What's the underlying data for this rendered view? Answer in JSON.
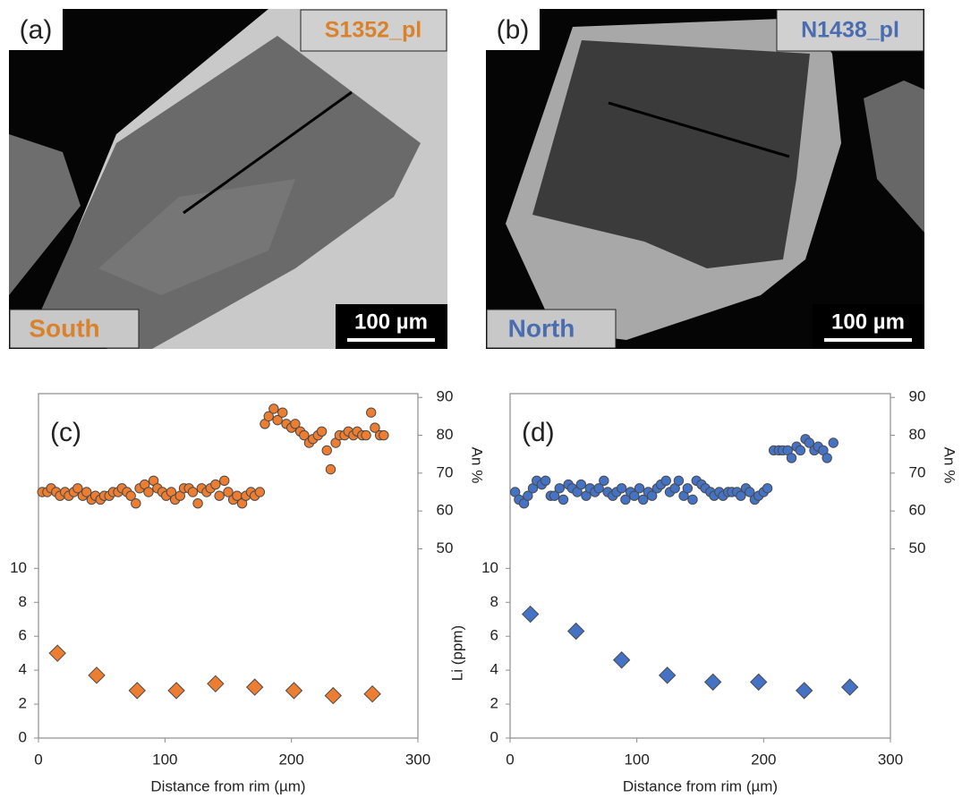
{
  "images": [
    {
      "label": "(a)",
      "sample": "S1352_pl",
      "region": "South",
      "scale": "100 µm",
      "color": "#d9822b"
    },
    {
      "label": "(b)",
      "sample": "N1438_pl",
      "region": "North",
      "scale": "100 µm",
      "color": "#4a6db0"
    }
  ],
  "chart_data": [
    {
      "type": "scatter",
      "label": "(c)",
      "xlabel": "Distance from rim (µm)",
      "y2label": "An %",
      "xlim": [
        0,
        300
      ],
      "xticks": [
        0,
        100,
        200,
        300
      ],
      "ylim": [
        0,
        20.3
      ],
      "yticks": [
        0,
        2,
        4,
        6,
        8,
        10
      ],
      "y2lim": [
        0,
        91
      ],
      "y2ticks": [
        50,
        60,
        70,
        80,
        90
      ],
      "series": [
        {
          "color": "#ed7d31",
          "marker": "circle",
          "axis": "y2",
          "x": [
            3,
            7,
            10,
            14,
            17,
            21,
            24,
            28,
            31,
            35,
            38,
            42,
            45,
            49,
            52,
            56,
            59,
            63,
            66,
            70,
            73,
            77,
            80,
            84,
            87,
            91,
            94,
            98,
            101,
            105,
            108,
            112,
            115,
            119,
            122,
            126,
            129,
            133,
            136,
            140,
            143,
            147,
            150,
            154,
            157,
            161,
            164,
            168,
            171,
            175,
            179,
            182,
            186,
            189,
            193,
            196,
            200,
            203,
            207,
            210,
            214,
            217,
            221,
            224,
            228,
            231,
            235,
            238,
            242,
            245,
            249,
            252,
            256,
            259,
            263,
            266,
            270,
            273
          ],
          "values": [
            65,
            65,
            66,
            65,
            64,
            65,
            64,
            65,
            66,
            64,
            65,
            63,
            64,
            63,
            64,
            64,
            65,
            65,
            66,
            65,
            64,
            62,
            66,
            67,
            65,
            68,
            66,
            65,
            64,
            65,
            63,
            64,
            66,
            66,
            65,
            62,
            66,
            65,
            66,
            67,
            64,
            68,
            65,
            63,
            64,
            62,
            64,
            65,
            64,
            65,
            83,
            85,
            87,
            84,
            86,
            83,
            82,
            83,
            81,
            80,
            78,
            79,
            80,
            81,
            76,
            71,
            78,
            80,
            80,
            81,
            80,
            81,
            80,
            80,
            86,
            82,
            80,
            80
          ]
        },
        {
          "color": "#ed7d31",
          "marker": "diamond",
          "x": [
            15,
            46,
            78,
            109,
            140,
            171,
            202,
            233,
            264
          ],
          "values": [
            5.0,
            3.7,
            2.8,
            2.8,
            3.2,
            3.0,
            2.8,
            2.5,
            2.6
          ]
        }
      ]
    },
    {
      "type": "scatter",
      "label": "(d)",
      "xlabel": "Distance from rim (µm)",
      "ylabel": "Li (ppm)",
      "y2label": "An %",
      "xlim": [
        0,
        300
      ],
      "xticks": [
        0,
        100,
        200,
        300
      ],
      "ylim": [
        0,
        20.3
      ],
      "yticks": [
        0,
        2,
        4,
        6,
        8,
        10
      ],
      "y2lim": [
        0,
        91
      ],
      "y2ticks": [
        50,
        60,
        70,
        80,
        90
      ],
      "series": [
        {
          "color": "#4472c4",
          "marker": "circle",
          "axis": "y2",
          "x": [
            4,
            7,
            11,
            14,
            18,
            21,
            25,
            28,
            32,
            35,
            39,
            42,
            46,
            49,
            53,
            56,
            60,
            63,
            67,
            70,
            74,
            77,
            81,
            84,
            88,
            91,
            95,
            98,
            102,
            105,
            109,
            112,
            116,
            119,
            123,
            126,
            130,
            133,
            137,
            140,
            144,
            147,
            151,
            154,
            158,
            161,
            165,
            168,
            172,
            175,
            179,
            182,
            186,
            189,
            193,
            196,
            200,
            203,
            208,
            212,
            215,
            219,
            222,
            226,
            229,
            233,
            236,
            240,
            243,
            247,
            250,
            255
          ],
          "values": [
            65,
            63,
            62,
            64,
            66,
            68,
            67,
            68,
            64,
            64,
            66,
            63,
            67,
            66,
            65,
            67,
            64,
            66,
            65,
            66,
            68,
            65,
            64,
            65,
            66,
            63,
            65,
            64,
            66,
            63,
            65,
            64,
            66,
            67,
            68,
            65,
            66,
            68,
            64,
            66,
            63,
            68,
            67,
            66,
            65,
            64,
            65,
            64,
            65,
            65,
            65,
            64,
            66,
            65,
            63,
            64,
            65,
            66,
            76,
            76,
            76,
            76,
            74,
            77,
            76,
            79,
            78,
            76,
            77,
            76,
            74,
            78
          ]
        },
        {
          "color": "#4472c4",
          "marker": "diamond",
          "x": [
            16,
            52,
            88,
            124,
            160,
            196,
            232,
            268
          ],
          "values": [
            7.3,
            6.3,
            4.6,
            3.7,
            3.3,
            3.3,
            2.8,
            3.0
          ]
        }
      ]
    }
  ]
}
